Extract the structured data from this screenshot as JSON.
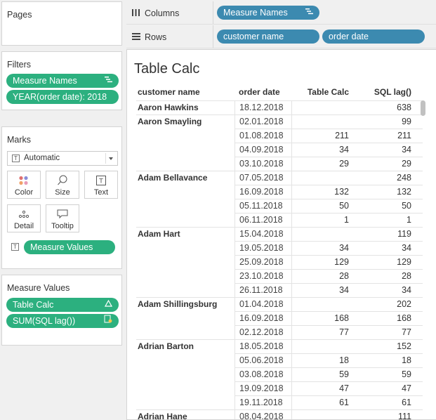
{
  "pages": {
    "title": "Pages"
  },
  "filters": {
    "title": "Filters",
    "pills": [
      {
        "label": "Measure Names",
        "icon": "filter-list-icon"
      },
      {
        "label": "YEAR(order date): 2018"
      }
    ]
  },
  "marks": {
    "title": "Marks",
    "type_label": "Automatic",
    "buttons": [
      {
        "label": "Color",
        "icon": "color-dots-icon"
      },
      {
        "label": "Size",
        "icon": "size-icon"
      },
      {
        "label": "Text",
        "icon": "text-icon"
      },
      {
        "label": "Detail",
        "icon": "detail-icon"
      },
      {
        "label": "Tooltip",
        "icon": "tooltip-icon"
      }
    ],
    "field_pill": "Measure Values"
  },
  "measure_values": {
    "title": "Measure Values",
    "pills": [
      {
        "label": "Table Calc",
        "icon": "delta-icon"
      },
      {
        "label": "SUM(SQL lag())",
        "icon": "calc-sql-icon"
      }
    ]
  },
  "columns_shelf": {
    "label": "Columns",
    "pills": [
      "Measure Names"
    ]
  },
  "rows_shelf": {
    "label": "Rows",
    "pills": [
      "customer name",
      "order date"
    ]
  },
  "view": {
    "title": "Table Calc",
    "headers": {
      "customer": "customer name",
      "date": "order date",
      "tc": "Table Calc",
      "sql": "SQL lag()"
    },
    "groups": [
      {
        "customer": "Aaron Hawkins",
        "rows": [
          {
            "date": "18.12.2018",
            "tc": "",
            "sql": "638"
          }
        ]
      },
      {
        "customer": "Aaron Smayling",
        "rows": [
          {
            "date": "02.01.2018",
            "tc": "",
            "sql": "99"
          },
          {
            "date": "01.08.2018",
            "tc": "211",
            "sql": "211"
          },
          {
            "date": "04.09.2018",
            "tc": "34",
            "sql": "34"
          },
          {
            "date": "03.10.2018",
            "tc": "29",
            "sql": "29"
          }
        ]
      },
      {
        "customer": "Adam Bellavance",
        "rows": [
          {
            "date": "07.05.2018",
            "tc": "",
            "sql": "248"
          },
          {
            "date": "16.09.2018",
            "tc": "132",
            "sql": "132"
          },
          {
            "date": "05.11.2018",
            "tc": "50",
            "sql": "50"
          },
          {
            "date": "06.11.2018",
            "tc": "1",
            "sql": "1"
          }
        ]
      },
      {
        "customer": "Adam Hart",
        "rows": [
          {
            "date": "15.04.2018",
            "tc": "",
            "sql": "119"
          },
          {
            "date": "19.05.2018",
            "tc": "34",
            "sql": "34"
          },
          {
            "date": "25.09.2018",
            "tc": "129",
            "sql": "129"
          },
          {
            "date": "23.10.2018",
            "tc": "28",
            "sql": "28"
          },
          {
            "date": "26.11.2018",
            "tc": "34",
            "sql": "34"
          }
        ]
      },
      {
        "customer": "Adam Shillingsburg",
        "rows": [
          {
            "date": "01.04.2018",
            "tc": "",
            "sql": "202"
          },
          {
            "date": "16.09.2018",
            "tc": "168",
            "sql": "168"
          },
          {
            "date": "02.12.2018",
            "tc": "77",
            "sql": "77"
          }
        ]
      },
      {
        "customer": "Adrian Barton",
        "rows": [
          {
            "date": "18.05.2018",
            "tc": "",
            "sql": "152"
          },
          {
            "date": "05.06.2018",
            "tc": "18",
            "sql": "18"
          },
          {
            "date": "03.08.2018",
            "tc": "59",
            "sql": "59"
          },
          {
            "date": "19.09.2018",
            "tc": "47",
            "sql": "47"
          },
          {
            "date": "19.11.2018",
            "tc": "61",
            "sql": "61"
          }
        ]
      },
      {
        "customer": "Adrian Hane",
        "rows": [
          {
            "date": "08.04.2018",
            "tc": "",
            "sql": "111"
          }
        ]
      }
    ]
  },
  "colors": {
    "green_pill": "#2cb07f",
    "blue_pill": "#3c8ab0"
  }
}
